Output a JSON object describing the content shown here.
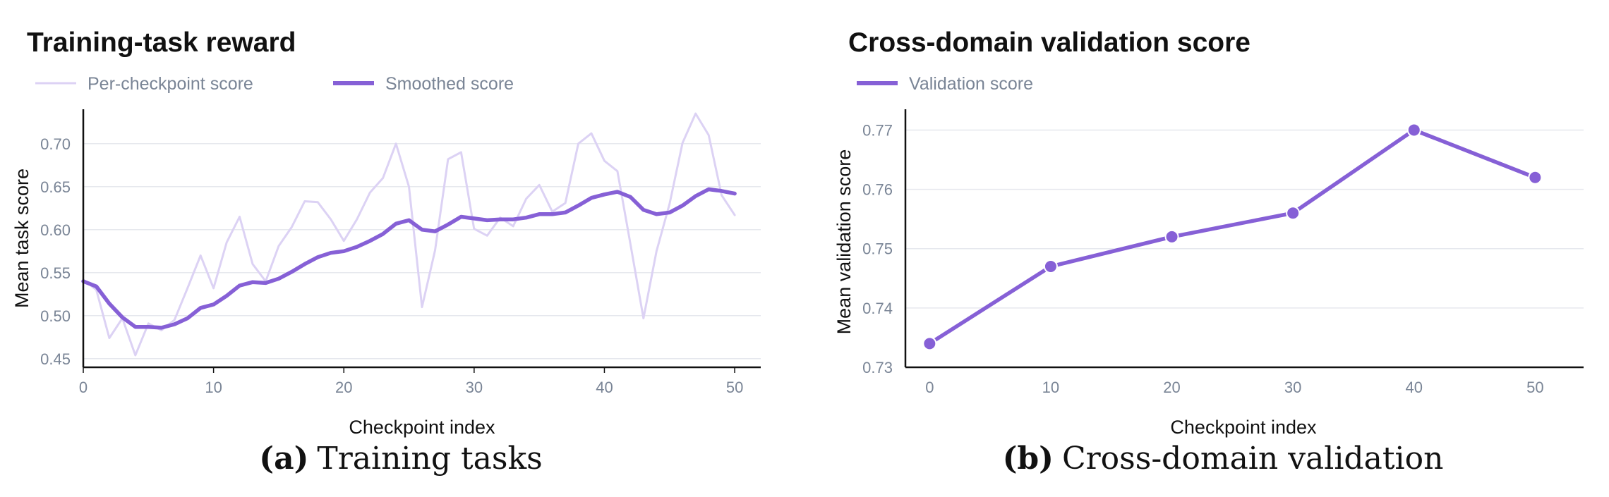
{
  "colors": {
    "accent": "#8660d6",
    "light": "#dcd2f4",
    "grid": "#e6e8ee",
    "axis": "#111111",
    "tick_text": "#7a8596"
  },
  "chart_data": [
    {
      "type": "line",
      "title": "Training-task reward",
      "xlabel": "Checkpoint index",
      "ylabel": "Mean task score",
      "xlim": [
        0,
        52
      ],
      "ylim": [
        0.44,
        0.74
      ],
      "xticks": [
        0,
        10,
        20,
        30,
        40,
        50
      ],
      "yticks": [
        0.45,
        0.5,
        0.55,
        0.6,
        0.65,
        0.7
      ],
      "ytick_labels": [
        "0.45",
        "0.50",
        "0.55",
        "0.60",
        "0.65",
        "0.70"
      ],
      "legend": [
        "Per-checkpoint score",
        "Smoothed score"
      ],
      "caption_label": "(a)",
      "caption_text": "Training tasks",
      "grid": true,
      "series": [
        {
          "name": "Per-checkpoint score",
          "style": "light",
          "x": [
            0,
            1,
            2,
            3,
            4,
            5,
            6,
            7,
            8,
            9,
            10,
            11,
            12,
            13,
            14,
            15,
            16,
            17,
            18,
            19,
            20,
            21,
            22,
            23,
            24,
            25,
            26,
            27,
            28,
            29,
            30,
            31,
            32,
            33,
            34,
            35,
            36,
            37,
            38,
            39,
            40,
            41,
            42,
            43,
            44,
            45,
            46,
            47,
            48,
            49,
            50
          ],
          "values": [
            0.542,
            0.53,
            0.474,
            0.497,
            0.454,
            0.491,
            0.483,
            0.495,
            0.532,
            0.57,
            0.532,
            0.585,
            0.615,
            0.56,
            0.54,
            0.581,
            0.603,
            0.633,
            0.632,
            0.612,
            0.587,
            0.612,
            0.643,
            0.66,
            0.7,
            0.65,
            0.51,
            0.576,
            0.682,
            0.69,
            0.601,
            0.593,
            0.614,
            0.604,
            0.636,
            0.652,
            0.621,
            0.631,
            0.7,
            0.712,
            0.68,
            0.668,
            0.583,
            0.497,
            0.575,
            0.63,
            0.701,
            0.735,
            0.71,
            0.64,
            0.617
          ]
        },
        {
          "name": "Smoothed score",
          "style": "bold",
          "x": [
            0,
            1,
            2,
            3,
            4,
            5,
            6,
            7,
            8,
            9,
            10,
            11,
            12,
            13,
            14,
            15,
            16,
            17,
            18,
            19,
            20,
            21,
            22,
            23,
            24,
            25,
            26,
            27,
            28,
            29,
            30,
            31,
            32,
            33,
            34,
            35,
            36,
            37,
            38,
            39,
            40,
            41,
            42,
            43,
            44,
            45,
            46,
            47,
            48,
            49,
            50
          ],
          "values": [
            0.54,
            0.534,
            0.514,
            0.498,
            0.487,
            0.487,
            0.486,
            0.49,
            0.497,
            0.509,
            0.513,
            0.523,
            0.535,
            0.539,
            0.538,
            0.543,
            0.551,
            0.56,
            0.568,
            0.573,
            0.575,
            0.58,
            0.587,
            0.595,
            0.607,
            0.611,
            0.6,
            0.598,
            0.606,
            0.615,
            0.613,
            0.611,
            0.612,
            0.612,
            0.614,
            0.618,
            0.618,
            0.62,
            0.628,
            0.637,
            0.641,
            0.644,
            0.638,
            0.623,
            0.618,
            0.62,
            0.628,
            0.639,
            0.647,
            0.645,
            0.642
          ]
        }
      ]
    },
    {
      "type": "line",
      "title": "Cross-domain validation score",
      "xlabel": "Checkpoint index",
      "ylabel": "Mean validation score",
      "xlim": [
        -2,
        54
      ],
      "ylim": [
        0.73,
        0.7735
      ],
      "xticks": [
        0,
        10,
        20,
        30,
        40,
        50
      ],
      "yticks": [
        0.73,
        0.74,
        0.75,
        0.76,
        0.77
      ],
      "ytick_labels": [
        "0.73",
        "0.74",
        "0.75",
        "0.76",
        "0.77"
      ],
      "legend": [
        "Validation score"
      ],
      "caption_label": "(b)",
      "caption_text": "Cross-domain validation",
      "grid": true,
      "series": [
        {
          "name": "Validation score",
          "style": "markers",
          "x": [
            0,
            10,
            20,
            30,
            40,
            50
          ],
          "values": [
            0.734,
            0.747,
            0.752,
            0.756,
            0.77,
            0.762
          ]
        }
      ]
    }
  ]
}
